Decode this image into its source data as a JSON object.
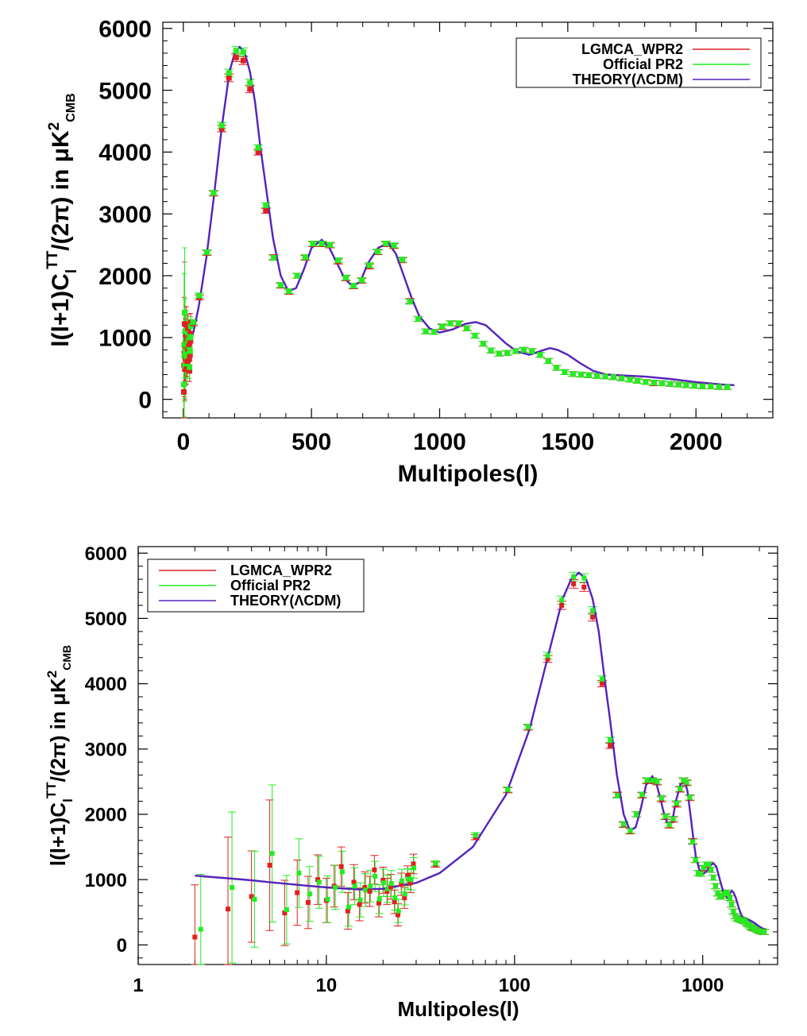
{
  "chart_data": [
    {
      "type": "line",
      "panel": "top",
      "xscale": "linear",
      "xlabel": "Multipoles(l)",
      "ylabel": "l(l+1)C_l^TT/(2π) in μK²_CMB",
      "xlim": [
        -80,
        2300
      ],
      "ylim": [
        -300,
        6100
      ],
      "xticks": [
        "0",
        "500",
        "1000",
        "1500",
        "2000"
      ],
      "xtick_values": [
        0,
        500,
        1000,
        1500,
        2000
      ],
      "yticks": [
        "0",
        "1000",
        "2000",
        "3000",
        "4000",
        "5000",
        "6000"
      ],
      "ytick_values": [
        0,
        1000,
        2000,
        3000,
        4000,
        5000,
        6000
      ],
      "legend_position": "top-right",
      "series": [
        {
          "name": "LGMCA_WPR2",
          "color": "#e02020"
        },
        {
          "name": "Official PR2",
          "color": "#22ee22"
        },
        {
          "name": "THEORY(ΛCDM)",
          "color": "#5522bb"
        }
      ]
    },
    {
      "type": "line",
      "panel": "bottom",
      "xscale": "log",
      "xlabel": "Multipoles(l)",
      "ylabel": "l(l+1)C_l^TT/(2π) in μK²_CMB",
      "xlim": [
        1,
        2500
      ],
      "ylim": [
        -300,
        6100
      ],
      "xticks": [
        "1",
        "10",
        "100",
        "1000"
      ],
      "xtick_values": [
        1,
        10,
        100,
        1000
      ],
      "yticks": [
        "0",
        "1000",
        "2000",
        "3000",
        "4000",
        "5000",
        "6000"
      ],
      "ytick_values": [
        0,
        1000,
        2000,
        3000,
        4000,
        5000,
        6000
      ],
      "legend_position": "top-left",
      "series": [
        {
          "name": "LGMCA_WPR2",
          "color": "#e02020"
        },
        {
          "name": "Official PR2",
          "color": "#22ee22"
        },
        {
          "name": "THEORY(ΛCDM)",
          "color": "#5522bb"
        }
      ]
    }
  ],
  "theory": {
    "l": [
      2,
      3,
      4,
      5,
      7,
      10,
      15,
      20,
      30,
      40,
      60,
      90,
      120,
      150,
      180,
      200,
      220,
      240,
      260,
      280,
      300,
      320,
      350,
      380,
      410,
      440,
      470,
      500,
      540,
      570,
      600,
      630,
      660,
      690,
      720,
      760,
      800,
      830,
      860,
      890,
      920,
      960,
      1000,
      1050,
      1100,
      1140,
      1180,
      1220,
      1260,
      1300,
      1350,
      1400,
      1430,
      1460,
      1500,
      1550,
      1600,
      1650,
      1700,
      1800,
      1900,
      2000,
      2100,
      2150
    ],
    "dl": [
      1060,
      1020,
      990,
      960,
      920,
      880,
      850,
      860,
      950,
      1100,
      1500,
      2300,
      3300,
      4400,
      5300,
      5600,
      5700,
      5600,
      5300,
      4800,
      4100,
      3500,
      2600,
      2000,
      1750,
      1800,
      2100,
      2450,
      2580,
      2450,
      2200,
      1950,
      1830,
      1900,
      2200,
      2450,
      2530,
      2350,
      2000,
      1650,
      1350,
      1150,
      1080,
      1130,
      1220,
      1250,
      1200,
      1050,
      900,
      780,
      720,
      790,
      830,
      800,
      720,
      580,
      460,
      400,
      390,
      370,
      330,
      280,
      240,
      230
    ]
  },
  "lowl": {
    "l": [
      2,
      3,
      4,
      5,
      6,
      7,
      8,
      9,
      10,
      11,
      12,
      13,
      14,
      15,
      16,
      17,
      18,
      19,
      20,
      21,
      22,
      23,
      24,
      25,
      26,
      27,
      28,
      29
    ],
    "lgmca": [
      120,
      550,
      740,
      1220,
      490,
      800,
      650,
      1000,
      680,
      900,
      1200,
      520,
      960,
      620,
      880,
      820,
      1150,
      640,
      990,
      820,
      890,
      660,
      460,
      930,
      720,
      1060,
      950,
      1240
    ],
    "official": [
      240,
      880,
      700,
      1400,
      540,
      1100,
      780,
      960,
      700,
      880,
      1120,
      580,
      900,
      690,
      840,
      900,
      1050,
      700,
      950,
      860,
      940,
      720,
      520,
      980,
      780,
      1010,
      1000,
      1180
    ],
    "err": [
      800,
      1100,
      700,
      1000,
      500,
      500,
      400,
      380,
      340,
      320,
      300,
      280,
      270,
      250,
      240,
      230,
      220,
      210,
      200,
      200,
      190,
      180,
      170,
      170,
      160,
      150,
      150,
      150
    ]
  },
  "binned": {
    "l": [
      38,
      62,
      92,
      118,
      150,
      178,
      206,
      234,
      260,
      292,
      322,
      352,
      380,
      412,
      444,
      476,
      506,
      540,
      572,
      604,
      634,
      664,
      696,
      726,
      758,
      790,
      822,
      854,
      884,
      916,
      946,
      978,
      1010,
      1042,
      1074,
      1106,
      1138,
      1170,
      1200,
      1232,
      1264,
      1296,
      1328,
      1360,
      1392,
      1424,
      1456,
      1488,
      1520,
      1552,
      1582,
      1614,
      1646,
      1678,
      1710,
      1742,
      1772,
      1804,
      1836,
      1868,
      1900,
      1932,
      1962,
      1994,
      2026,
      2058,
      2090,
      2122
    ],
    "lgmca": [
      1230,
      1650,
      2370,
      3330,
      4380,
      5200,
      5530,
      5480,
      5020,
      4000,
      3050,
      2300,
      1840,
      1740,
      2000,
      2290,
      2510,
      2510,
      2490,
      2230,
      1960,
      1830,
      1920,
      2150,
      2380,
      2510,
      2480,
      2250,
      1590,
      1300,
      1100,
      1090,
      1170,
      1230,
      1220,
      1150,
      1030,
      900,
      790,
      740,
      750,
      780,
      800,
      780,
      720,
      620,
      510,
      440,
      410,
      400,
      390,
      380,
      370,
      360,
      340,
      320,
      300,
      280,
      260,
      260,
      250,
      240,
      230,
      220,
      210,
      210,
      200,
      200
    ],
    "official": [
      1250,
      1680,
      2380,
      3340,
      4430,
      5280,
      5640,
      5620,
      5120,
      4070,
      3140,
      2290,
      1850,
      1750,
      2000,
      2300,
      2520,
      2520,
      2500,
      2250,
      1970,
      1840,
      1930,
      2170,
      2390,
      2520,
      2490,
      2260,
      1580,
      1300,
      1100,
      1090,
      1180,
      1230,
      1230,
      1150,
      1030,
      900,
      790,
      740,
      750,
      780,
      800,
      780,
      720,
      620,
      510,
      440,
      410,
      400,
      390,
      380,
      370,
      360,
      340,
      320,
      300,
      280,
      270,
      260,
      250,
      240,
      230,
      220,
      210,
      210,
      200,
      200
    ]
  }
}
